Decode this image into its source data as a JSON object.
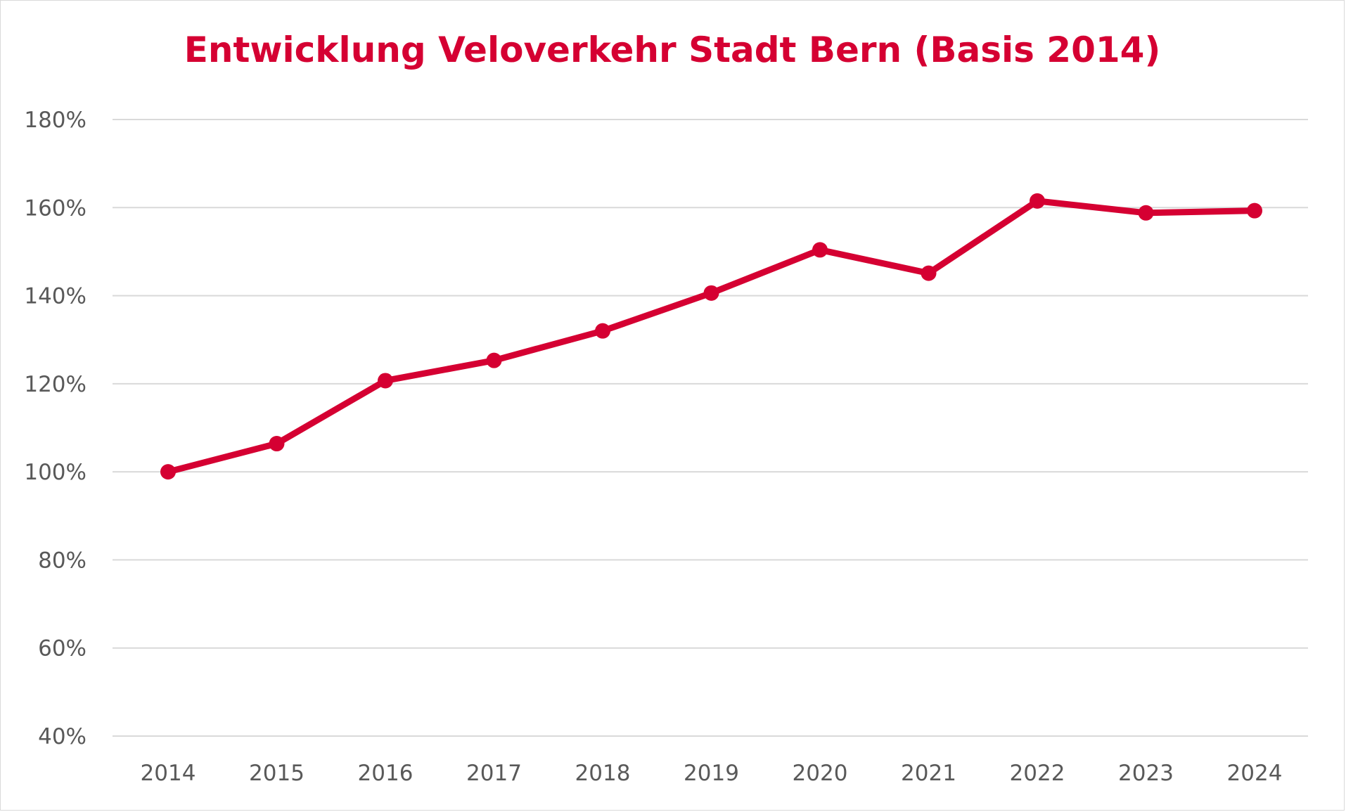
{
  "chart_data": {
    "type": "line",
    "title": "Entwicklung Veloverkehr Stadt Bern (Basis 2014)",
    "xlabel": "",
    "ylabel": "",
    "categories": [
      "2014",
      "2015",
      "2016",
      "2017",
      "2018",
      "2019",
      "2020",
      "2021",
      "2022",
      "2023",
      "2024"
    ],
    "series": [
      {
        "values": [
          100,
          106.4,
          120.7,
          125.3,
          132,
          140.6,
          150.4,
          145.1,
          161.5,
          158.8,
          159.3
        ]
      }
    ],
    "y_ticks": [
      "40%",
      "60%",
      "80%",
      "100%",
      "120%",
      "140%",
      "160%",
      "180%"
    ],
    "ylim": [
      40,
      180
    ],
    "y_tick_step": 20,
    "grid": true,
    "legend": "none",
    "markers": true
  },
  "colors": {
    "series": "#D50032",
    "title": "#D50032",
    "grid": "#d9d9d9",
    "tick_text": "#595959"
  }
}
